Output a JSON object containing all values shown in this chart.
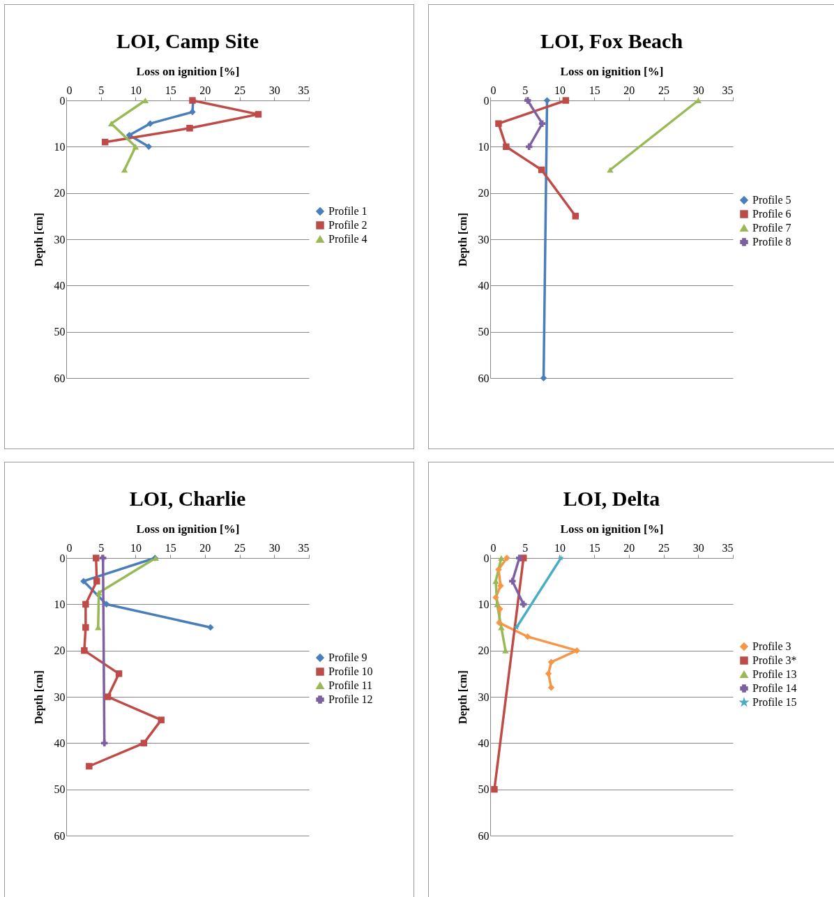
{
  "chart_data": [
    {
      "type": "line",
      "title": "LOI, Camp Site",
      "xlabel": "Loss on ignition [%]",
      "ylabel": "Depth [cm]",
      "xlim": [
        0,
        35
      ],
      "xticks": [
        0,
        5,
        10,
        15,
        20,
        25,
        30,
        35
      ],
      "ylim": [
        60,
        0
      ],
      "yticks": [
        0,
        10,
        20,
        30,
        40,
        50,
        60
      ],
      "grid": "y",
      "legend": "right",
      "series": [
        {
          "name": "Profile 1",
          "color": "#4a7ebb",
          "marker": "diamond",
          "x": [
            18.3,
            18.2,
            12.1,
            9.1,
            11.9
          ],
          "values": [
            0,
            2.5,
            5,
            7.5,
            10
          ]
        },
        {
          "name": "Profile 2",
          "color": "#be4b48",
          "marker": "square",
          "x": [
            18.2,
            27.7,
            17.8,
            5.6
          ],
          "values": [
            0,
            3,
            6,
            9
          ]
        },
        {
          "name": "Profile 4",
          "color": "#98b954",
          "marker": "triangle",
          "x": [
            11.4,
            6.5,
            10,
            8.4
          ],
          "values": [
            0,
            5,
            10,
            15
          ]
        }
      ]
    },
    {
      "type": "line",
      "title": "LOI, Fox Beach",
      "xlabel": "Loss on ignition [%]",
      "ylabel": "Depth [cm]",
      "xlim": [
        0,
        35
      ],
      "xticks": [
        0,
        5,
        10,
        15,
        20,
        25,
        30,
        35
      ],
      "ylim": [
        60,
        0
      ],
      "yticks": [
        0,
        10,
        20,
        30,
        40,
        50,
        60
      ],
      "grid": "y",
      "legend": "right",
      "series": [
        {
          "name": "Profile 5",
          "color": "#4a7ebb",
          "marker": "diamond",
          "x": [
            8.2,
            7.7
          ],
          "values": [
            0,
            60
          ]
        },
        {
          "name": "Profile 6",
          "color": "#be4b48",
          "marker": "square",
          "x": [
            10.9,
            1.2,
            2.3,
            7.4,
            12.3
          ],
          "values": [
            0,
            5,
            10,
            15,
            25
          ]
        },
        {
          "name": "Profile 7",
          "color": "#98b954",
          "marker": "triangle",
          "x": [
            30,
            17.3
          ],
          "values": [
            0,
            15
          ]
        },
        {
          "name": "Profile 8",
          "color": "#7d60a0",
          "marker": "cross",
          "x": [
            5.4,
            7.5,
            5.6
          ],
          "values": [
            0,
            5,
            10
          ]
        }
      ]
    },
    {
      "type": "line",
      "title": "LOI, Charlie",
      "xlabel": "Loss on ignition [%]",
      "ylabel": "Depth [cm]",
      "xlim": [
        0,
        35
      ],
      "xticks": [
        0,
        5,
        10,
        15,
        20,
        25,
        30,
        35
      ],
      "ylim": [
        60,
        0
      ],
      "yticks": [
        0,
        10,
        20,
        30,
        40,
        50,
        60
      ],
      "grid": "y",
      "legend": "right",
      "series": [
        {
          "name": "Profile 9",
          "color": "#4a7ebb",
          "marker": "diamond",
          "x": [
            12.8,
            2.5,
            5.8,
            20.8
          ],
          "values": [
            0,
            5,
            10,
            15
          ]
        },
        {
          "name": "Profile 10",
          "color": "#be4b48",
          "marker": "square",
          "x": [
            4.3,
            4.4,
            2.8,
            2.8,
            2.6,
            7.6,
            6,
            13.7,
            11.2,
            3.3
          ],
          "values": [
            0,
            5,
            10,
            15,
            20,
            25,
            30,
            35,
            40,
            45
          ]
        },
        {
          "name": "Profile 11",
          "color": "#98b954",
          "marker": "triangle",
          "x": [
            12.9,
            4.7,
            4.6
          ],
          "values": [
            0,
            7.5,
            15
          ]
        },
        {
          "name": "Profile 12",
          "color": "#7d60a0",
          "marker": "cross",
          "x": [
            5.3,
            5.5
          ],
          "values": [
            0,
            40
          ]
        }
      ]
    },
    {
      "type": "line",
      "title": "LOI, Delta",
      "xlabel": "Loss on ignition [%]",
      "ylabel": "Depth [cm]",
      "xlim": [
        0,
        35
      ],
      "xticks": [
        0,
        5,
        10,
        15,
        20,
        25,
        30,
        35
      ],
      "ylim": [
        60,
        0
      ],
      "yticks": [
        0,
        10,
        20,
        30,
        40,
        50,
        60
      ],
      "grid": "y",
      "legend": "right",
      "series": [
        {
          "name": "Profile 3",
          "color": "#f79646",
          "marker": "diamond",
          "x": [
            2.4,
            1.2,
            1.5,
            0.8,
            1.4,
            1.3,
            5.4,
            12.5,
            8.8,
            8.4,
            8.8
          ],
          "values": [
            0,
            2.5,
            6,
            8.5,
            11,
            14,
            17,
            20,
            22.5,
            25,
            28
          ]
        },
        {
          "name": "Profile 3*",
          "color": "#be4b48",
          "marker": "square",
          "x": [
            4.8,
            0.6
          ],
          "values": [
            0,
            50
          ]
        },
        {
          "name": "Profile 13",
          "color": "#98b954",
          "marker": "triangle",
          "x": [
            1.6,
            0.8,
            1,
            1.6,
            2.2
          ],
          "values": [
            0,
            5,
            10,
            15,
            20
          ]
        },
        {
          "name": "Profile 14",
          "color": "#7d60a0",
          "marker": "cross",
          "x": [
            4.2,
            3.2,
            4.8
          ],
          "values": [
            0,
            5,
            10
          ]
        },
        {
          "name": "Profile 15",
          "color": "#4bacc6",
          "marker": "star",
          "x": [
            10.2,
            3.8
          ],
          "values": [
            0,
            15
          ]
        }
      ]
    }
  ]
}
